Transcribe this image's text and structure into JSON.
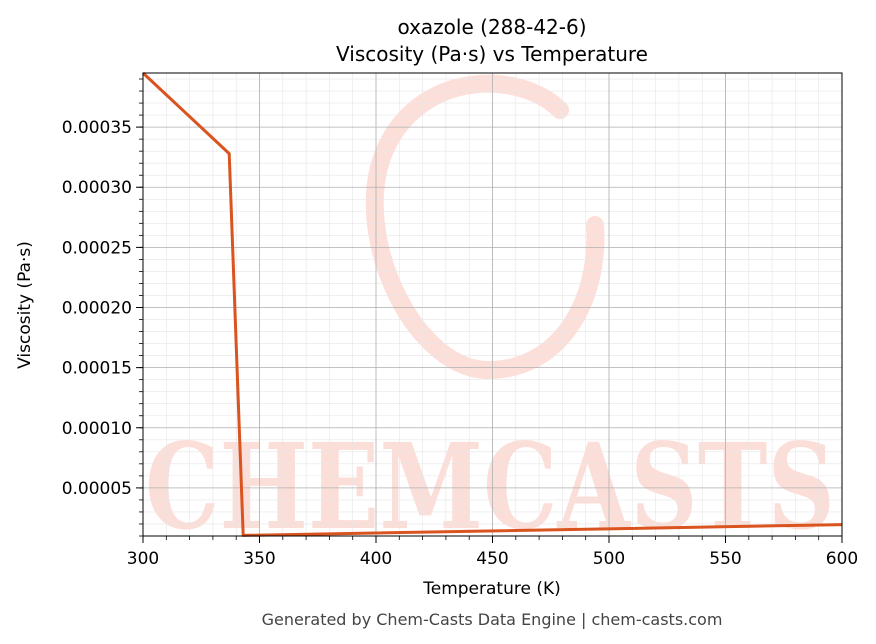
{
  "chart_data": {
    "type": "line",
    "title_line1": "oxazole (288-42-6)",
    "title_line2": "Viscosity (Pa·s) vs Temperature",
    "xlabel": "Temperature (K)",
    "ylabel": "Viscosity (Pa·s)",
    "xlim": [
      300,
      600
    ],
    "ylim": [
      1e-05,
      0.000395
    ],
    "x_ticks": [
      300,
      350,
      400,
      450,
      500,
      550,
      600
    ],
    "x_tick_labels": [
      "300",
      "350",
      "400",
      "450",
      "500",
      "550",
      "600"
    ],
    "y_ticks": [
      5e-05,
      0.0001,
      0.00015,
      0.0002,
      0.00025,
      0.0003,
      0.00035
    ],
    "y_tick_labels": [
      "0.00005",
      "0.00010",
      "0.00015",
      "0.00020",
      "0.00025",
      "0.00030",
      "0.00035"
    ],
    "grid": true,
    "minor_grid": true,
    "series": [
      {
        "color": "#d9541e",
        "x": [
          300,
          337,
          343,
          600
        ],
        "y": [
          0.000395,
          0.000328,
          1.05e-05,
          1.95e-05
        ]
      }
    ]
  },
  "watermark": {
    "text": "CHEMCASTS",
    "color": "#fbd3cc"
  },
  "footer": {
    "text": "Generated by Chem-Casts Data Engine | chem-casts.com"
  }
}
